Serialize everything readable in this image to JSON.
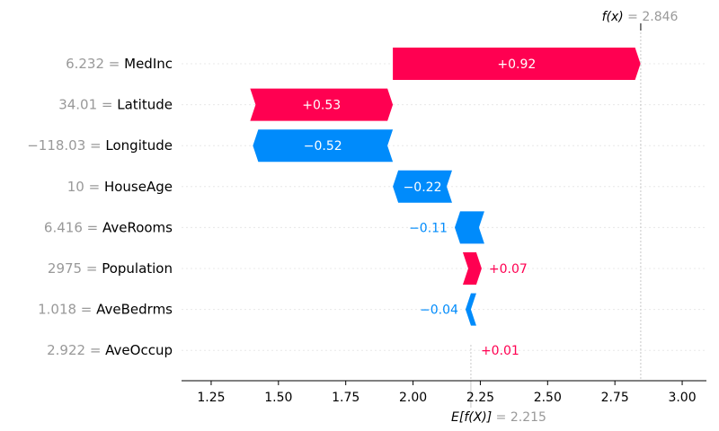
{
  "chart_data": {
    "type": "waterfall",
    "title": "",
    "xlabel": "",
    "ylabel": "",
    "fx_label": "f(x)",
    "fx_value": "2.846",
    "base_label": "E[f(X)]",
    "base_value": "2.215",
    "base": 2.215,
    "fx": 2.846,
    "xlim": [
      1.14,
      3.09
    ],
    "xticks": [
      1.25,
      1.5,
      1.75,
      2.0,
      2.25,
      2.5,
      2.75,
      3.0
    ],
    "xtick_labels": [
      "1.25",
      "1.50",
      "1.75",
      "2.00",
      "2.25",
      "2.50",
      "2.75",
      "3.00"
    ],
    "positive_color": "#ff0051",
    "negative_color": "#008bfb",
    "features": [
      {
        "value": "6.232",
        "name": "MedInc",
        "shap": 0.92,
        "start": 1.925,
        "label": "+0.92"
      },
      {
        "value": "34.01",
        "name": "Latitude",
        "shap": 0.53,
        "start": 1.395,
        "label": "+0.53"
      },
      {
        "value": "−118.03",
        "name": "Longitude",
        "shap": -0.52,
        "start": 1.925,
        "label": "−0.52"
      },
      {
        "value": "10",
        "name": "HouseAge",
        "shap": -0.22,
        "start": 2.145,
        "label": "−0.22"
      },
      {
        "value": "6.416",
        "name": "AveRooms",
        "shap": -0.11,
        "start": 2.265,
        "label": "−0.11"
      },
      {
        "value": "2975",
        "name": "Population",
        "shap": 0.07,
        "start": 2.185,
        "label": "+0.07"
      },
      {
        "value": "1.018",
        "name": "AveBedrms",
        "shap": -0.04,
        "start": 2.235,
        "label": "−0.04"
      },
      {
        "value": "2.922",
        "name": "AveOccup",
        "shap": 0.01,
        "start": 2.215,
        "label": "+0.01"
      }
    ]
  }
}
